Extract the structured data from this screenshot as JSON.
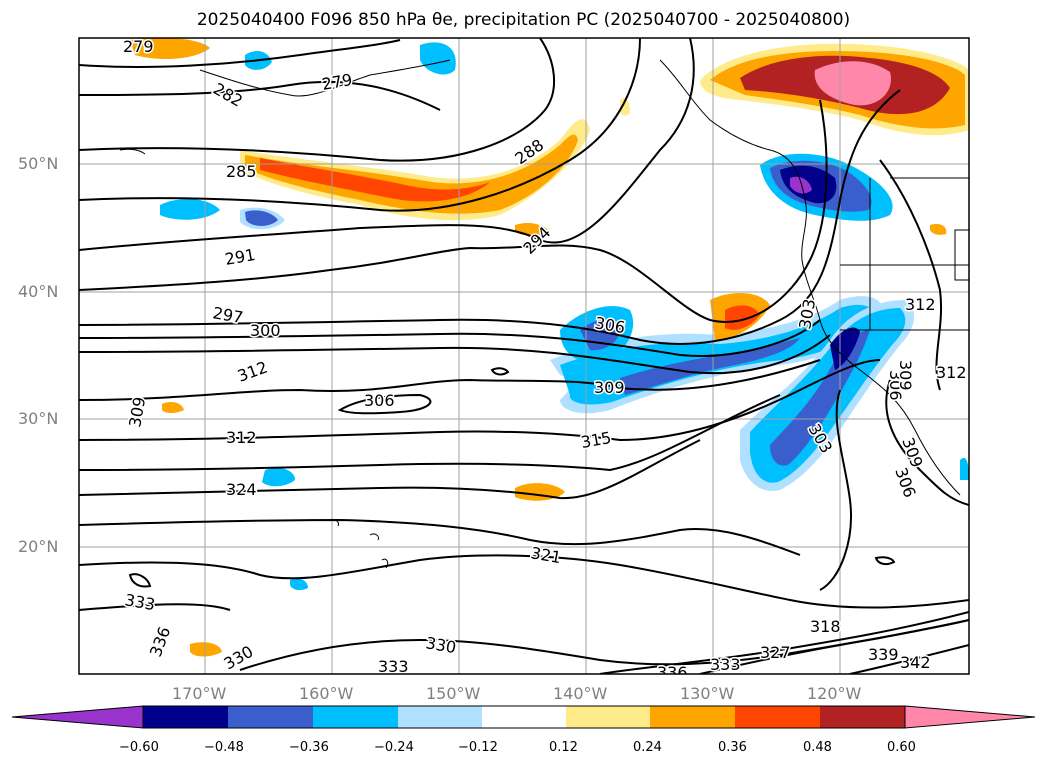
{
  "title": "2025040400 F096 850 hPa θe, precipitation PC (2025040700 - 2025040800)",
  "map": {
    "lat_labels": [
      "50°N",
      "40°N",
      "30°N",
      "20°N"
    ],
    "lon_labels": [
      "170°W",
      "160°W",
      "150°W",
      "140°W",
      "130°W",
      "120°W"
    ],
    "contour_labels": [
      "279",
      "282",
      "279",
      "285",
      "288",
      "291",
      "294",
      "297",
      "300",
      "312",
      "306",
      "309",
      "303",
      "306",
      "309",
      "315",
      "312",
      "324",
      "321",
      "333",
      "336",
      "330",
      "330",
      "333",
      "336",
      "333",
      "327",
      "318",
      "339",
      "342",
      "312",
      "312",
      "303",
      "306",
      "309",
      "306",
      "309"
    ]
  },
  "colorbar": {
    "ticks": [
      "−0.60",
      "−0.48",
      "−0.36",
      "−0.24",
      "−0.12",
      "0.12",
      "0.24",
      "0.36",
      "0.48",
      "0.60"
    ],
    "colors": [
      "#9933cc",
      "#00008b",
      "#3a5fcd",
      "#00bfff",
      "#b0e0ff",
      "#ffffff",
      "#ffeb8a",
      "#ffa500",
      "#ff4500",
      "#b22222",
      "#ff88aa"
    ]
  },
  "colors": {
    "positive_strong": "#ff88aa",
    "positive_red": "#b22222",
    "positive_orange": "#ff4500",
    "positive_amber": "#ffa500",
    "positive_light": "#ffeb8a",
    "negative_light": "#b0e0ff",
    "negative_cyan": "#00bfff",
    "negative_blue": "#3a5fcd",
    "negative_navy": "#00008b",
    "negative_purple": "#9933cc"
  }
}
